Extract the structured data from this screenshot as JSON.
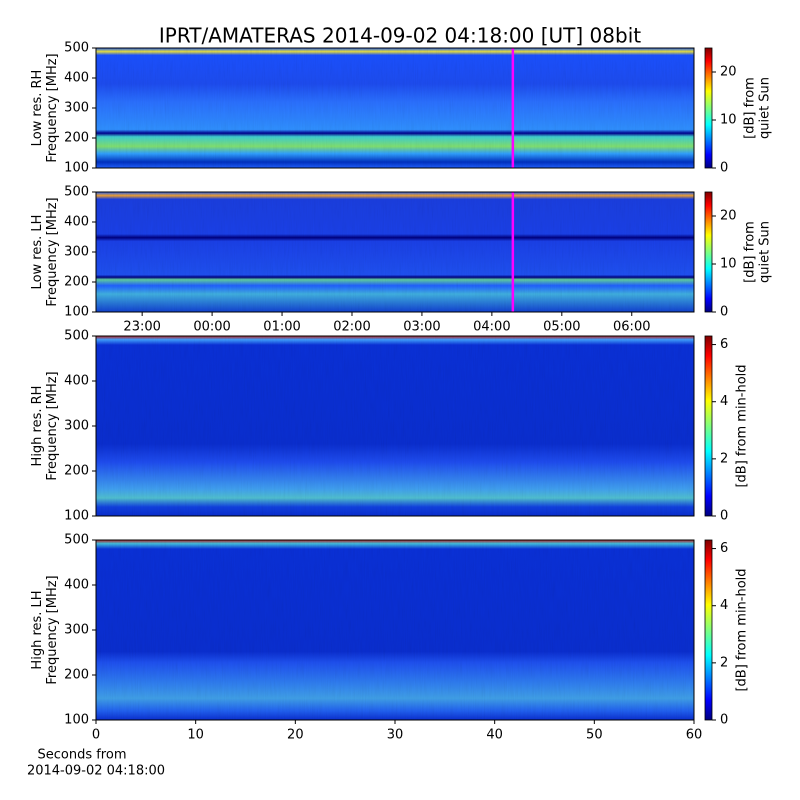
{
  "chart_data": [
    {
      "type": "heatmap",
      "title": "IPRT/AMATERAS 2014-09-02 04:18:00 [UT]   08bit",
      "ylabel": [
        "Low res. RH",
        "Frequency [MHz]"
      ],
      "xlim": [
        -1.66,
        6.89
      ],
      "ylim": [
        100,
        500
      ],
      "yticks": [
        100,
        200,
        300,
        400,
        500
      ],
      "marker": {
        "value": 4.3,
        "color": "#ff00ff"
      },
      "colorbar": {
        "label": [
          "[dB] from",
          "quiet Sun"
        ],
        "lim": [
          0,
          25
        ],
        "ticks": [
          0,
          10,
          20
        ]
      }
    },
    {
      "type": "heatmap",
      "ylabel": [
        "Low res. LH",
        "Frequency [MHz]"
      ],
      "xlim": [
        -1.66,
        6.89
      ],
      "ylim": [
        100,
        500
      ],
      "yticks": [
        100,
        200,
        300,
        400,
        500
      ],
      "xticks": [
        {
          "value": -1,
          "label": "23:00"
        },
        {
          "value": 0,
          "label": "00:00"
        },
        {
          "value": 1,
          "label": "01:00"
        },
        {
          "value": 2,
          "label": "02:00"
        },
        {
          "value": 3,
          "label": "03:00"
        },
        {
          "value": 4,
          "label": "04:00"
        },
        {
          "value": 5,
          "label": "05:00"
        },
        {
          "value": 6,
          "label": "06:00"
        }
      ],
      "marker": {
        "value": 4.3,
        "color": "#ff00ff"
      },
      "colorbar": {
        "label": [
          "[dB] from",
          "quiet Sun"
        ],
        "lim": [
          0,
          25
        ],
        "ticks": [
          0,
          10,
          20
        ]
      }
    },
    {
      "type": "heatmap",
      "ylabel": [
        "High res. RH",
        "Frequency [MHz]"
      ],
      "xlim": [
        0,
        60
      ],
      "ylim": [
        100,
        500
      ],
      "yticks": [
        100,
        200,
        300,
        400,
        500
      ],
      "colorbar": {
        "label": [
          "[dB] from min-hold"
        ],
        "lim": [
          0,
          6.3
        ],
        "ticks": [
          0,
          2,
          4,
          6
        ]
      }
    },
    {
      "type": "heatmap",
      "ylabel": [
        "High res. LH",
        "Frequency [MHz]"
      ],
      "xlabel": [
        "Seconds from",
        "2014-09-02 04:18:00"
      ],
      "xlim": [
        0,
        60
      ],
      "ylim": [
        100,
        500
      ],
      "yticks": [
        100,
        200,
        300,
        400,
        500
      ],
      "xticks": [
        0,
        10,
        20,
        30,
        40,
        50,
        60
      ],
      "colorbar": {
        "label": [
          "[dB] from min-hold"
        ],
        "lim": [
          0,
          6.3
        ],
        "ticks": [
          0,
          2,
          4,
          6
        ]
      }
    }
  ]
}
